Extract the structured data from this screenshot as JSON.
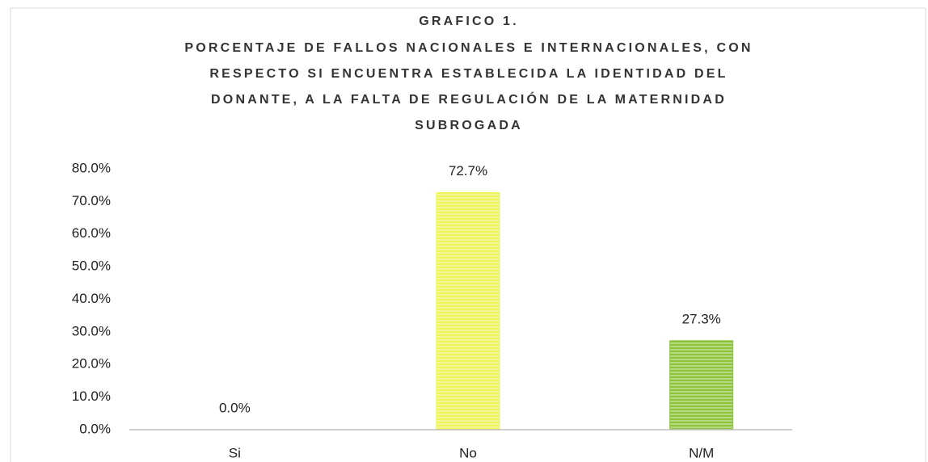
{
  "chart_data": {
    "type": "bar",
    "title": [
      "GRAFICO 1.",
      "PORCENTAJE DE FALLOS NACIONALES E INTERNACIONALES, CON",
      "RESPECTO SI ENCUENTRA ESTABLECIDA LA IDENTIDAD DEL",
      "DONANTE, A LA FALTA DE REGULACIÓN DE LA MATERNIDAD",
      "SUBROGADA"
    ],
    "categories": [
      "Si",
      "No",
      "N/M"
    ],
    "values": [
      0,
      72.7,
      27.3
    ],
    "value_labels": [
      "0.0%",
      "72.7%",
      "27.3%"
    ],
    "colors": [
      "#8dc43c",
      "#eef55a",
      "#8dc43c"
    ],
    "ylim": [
      0,
      80
    ],
    "yticks": [
      {
        "value": 0,
        "label": "0.0%"
      },
      {
        "value": 10,
        "label": "10.0%"
      },
      {
        "value": 20,
        "label": "20.0%"
      },
      {
        "value": 30,
        "label": "30.0%"
      },
      {
        "value": 40,
        "label": "40.0%"
      },
      {
        "value": 50,
        "label": "50.0%"
      },
      {
        "value": 60,
        "label": "60.0%"
      },
      {
        "value": 70,
        "label": "70.0%"
      },
      {
        "value": 80,
        "label": "80.0%"
      }
    ],
    "grid": false
  }
}
